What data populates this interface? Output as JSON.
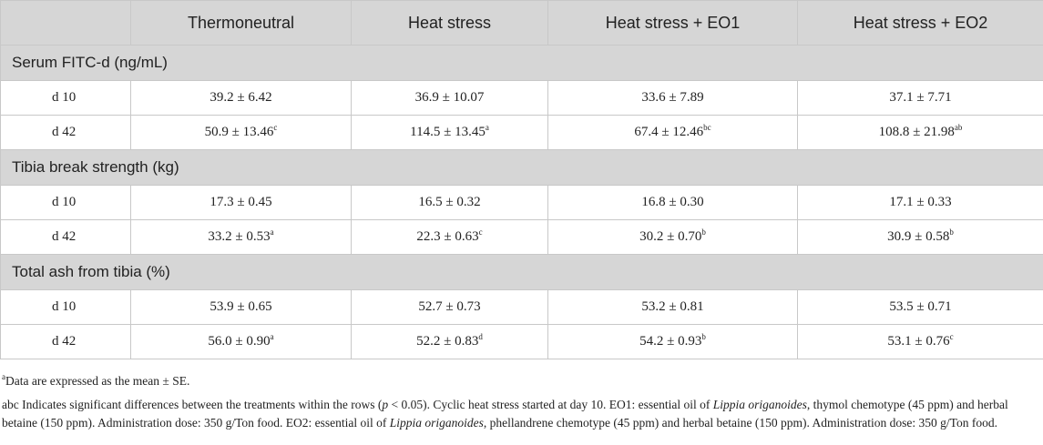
{
  "table": {
    "headers": [
      "",
      "Thermoneutral",
      "Heat stress",
      "Heat stress + EO1",
      "Heat stress + EO2"
    ],
    "sections": [
      {
        "title": "Serum FITC-d (ng/mL)",
        "rows": [
          {
            "day": "d 10",
            "cells": [
              {
                "value": "39.2 ± 6.42",
                "sup": ""
              },
              {
                "value": "36.9 ± 10.07",
                "sup": ""
              },
              {
                "value": "33.6 ± 7.89",
                "sup": ""
              },
              {
                "value": "37.1 ± 7.71",
                "sup": ""
              }
            ]
          },
          {
            "day": "d 42",
            "cells": [
              {
                "value": "50.9 ± 13.46",
                "sup": "c"
              },
              {
                "value": "114.5 ± 13.45",
                "sup": "a"
              },
              {
                "value": "67.4 ± 12.46",
                "sup": "bc"
              },
              {
                "value": "108.8 ± 21.98",
                "sup": "ab"
              }
            ]
          }
        ]
      },
      {
        "title": "Tibia break strength (kg)",
        "rows": [
          {
            "day": "d 10",
            "cells": [
              {
                "value": "17.3 ± 0.45",
                "sup": ""
              },
              {
                "value": "16.5 ± 0.32",
                "sup": ""
              },
              {
                "value": "16.8 ± 0.30",
                "sup": ""
              },
              {
                "value": "17.1 ± 0.33",
                "sup": ""
              }
            ]
          },
          {
            "day": "d 42",
            "cells": [
              {
                "value": "33.2 ± 0.53",
                "sup": "a"
              },
              {
                "value": "22.3 ± 0.63",
                "sup": "c"
              },
              {
                "value": "30.2 ± 0.70",
                "sup": "b"
              },
              {
                "value": "30.9 ± 0.58",
                "sup": "b"
              }
            ]
          }
        ]
      },
      {
        "title": "Total ash from tibia (%)",
        "rows": [
          {
            "day": "d 10",
            "cells": [
              {
                "value": "53.9 ± 0.65",
                "sup": ""
              },
              {
                "value": "52.7 ± 0.73",
                "sup": ""
              },
              {
                "value": "53.2 ± 0.81",
                "sup": ""
              },
              {
                "value": "53.5 ± 0.71",
                "sup": ""
              }
            ]
          },
          {
            "day": "d 42",
            "cells": [
              {
                "value": "56.0 ± 0.90",
                "sup": "a"
              },
              {
                "value": "52.2 ± 0.83",
                "sup": "d"
              },
              {
                "value": "54.2 ± 0.93",
                "sup": "b"
              },
              {
                "value": "53.1 ± 0.76",
                "sup": "c"
              }
            ]
          }
        ]
      }
    ]
  },
  "footnotes": {
    "note_a_marker": "a",
    "note_a_text": "Data are expressed as the mean ± SE.",
    "note_abc": {
      "t1": "abc Indicates significant differences between the treatments within the rows (",
      "p": "p",
      "t2": " < 0.05). Cyclic heat stress started at day 10. EO1: essential oil of ",
      "species1": "Lippia origanoides",
      "t3": ", thymol chemotype (45 ppm) and herbal betaine (150 ppm). Administration dose: 350 g/Ton food. EO2: essential oil of ",
      "species2": "Lippia origanoides",
      "t4": ", phellandrene chemotype (45 ppm) and herbal betaine (150 ppm). Administration dose: 350 g/Ton food."
    }
  }
}
